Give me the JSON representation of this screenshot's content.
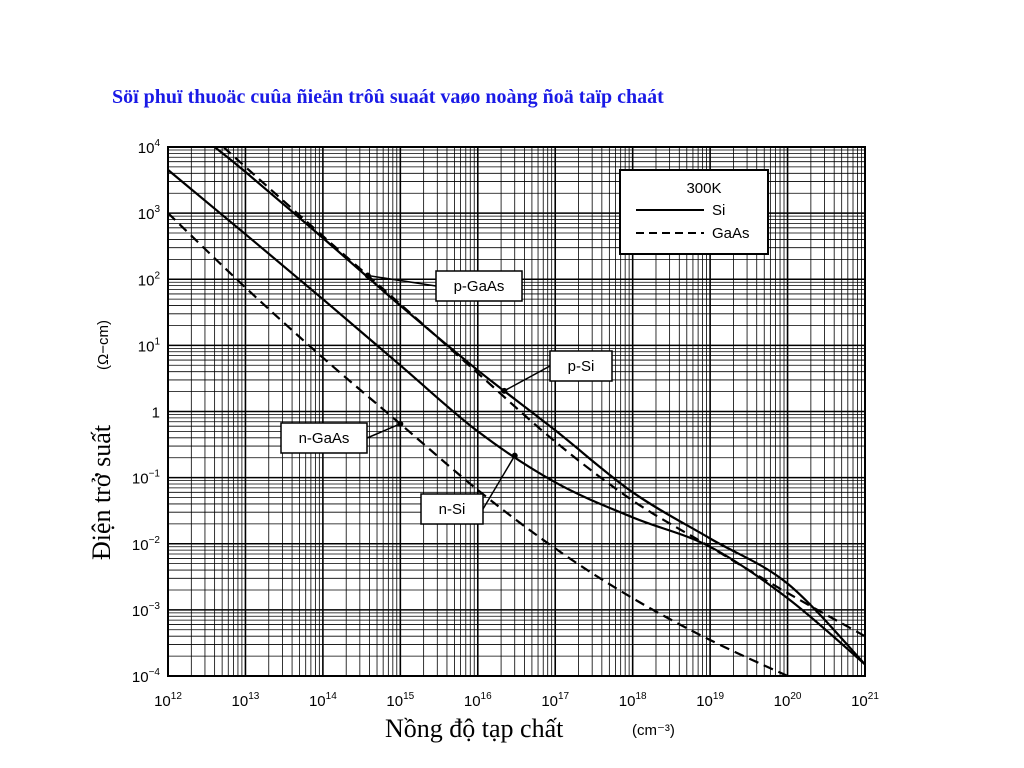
{
  "slide": {
    "title": "Söï phuï thuoäc cuûa ñieän trôû suaát vaøo noàng ñoä taïp chaát"
  },
  "chart_data": {
    "type": "line",
    "xscale": "log",
    "yscale": "log",
    "xlim": [
      1000000000000.0,
      1e+21
    ],
    "ylim": [
      0.0001,
      10000.0
    ],
    "grid": true,
    "xlabel": "Nồng độ tạp chất",
    "xlabel_unit": "(cm⁻³)",
    "ylabel": "Điện trở suất",
    "ylabel_unit": "(Ω−cm)",
    "x_ticks": [
      {
        "base": "10",
        "exp": "12"
      },
      {
        "base": "10",
        "exp": "13"
      },
      {
        "base": "10",
        "exp": "14"
      },
      {
        "base": "10",
        "exp": "15"
      },
      {
        "base": "10",
        "exp": "16"
      },
      {
        "base": "10",
        "exp": "17"
      },
      {
        "base": "10",
        "exp": "18"
      },
      {
        "base": "10",
        "exp": "19"
      },
      {
        "base": "10",
        "exp": "20"
      },
      {
        "base": "10",
        "exp": "21"
      }
    ],
    "y_ticks": [
      {
        "base": "10",
        "exp": "4"
      },
      {
        "base": "10",
        "exp": "3"
      },
      {
        "base": "10",
        "exp": "2"
      },
      {
        "base": "10",
        "exp": "1"
      },
      {
        "base": "1",
        "exp": ""
      },
      {
        "base": "10",
        "exp": "−1"
      },
      {
        "base": "10",
        "exp": "−2"
      },
      {
        "base": "10",
        "exp": "−3"
      },
      {
        "base": "10",
        "exp": "−4"
      }
    ],
    "legend": {
      "placement": "top-right",
      "title": "300K",
      "entries": [
        {
          "label": "Si",
          "style": "solid"
        },
        {
          "label": "GaAs",
          "style": "dashed"
        }
      ]
    },
    "series": [
      {
        "name": "p-GaAs",
        "style": "dashed",
        "x": [
          5200000000000.0,
          10000000000000.0,
          100000000000000.0,
          1000000000000000.0,
          1e+16,
          1e+17,
          1e+18,
          1e+19,
          1e+20,
          1e+21
        ],
        "y": [
          10000,
          5000,
          450,
          42,
          3.8,
          0.35,
          0.045,
          0.009,
          0.0018,
          0.0004
        ]
      },
      {
        "name": "p-Si",
        "style": "solid",
        "x": [
          4000000000000.0,
          10000000000000.0,
          100000000000000.0,
          1000000000000000.0,
          1e+16,
          1e+17,
          1e+18,
          1e+19,
          1e+20,
          1e+21
        ],
        "y": [
          10000,
          4200,
          420,
          40,
          4.2,
          0.52,
          0.06,
          0.012,
          0.0025,
          0.00015
        ]
      },
      {
        "name": "n-Si",
        "style": "solid",
        "x": [
          1000000000000.0,
          10000000000000.0,
          100000000000000.0,
          1000000000000000.0,
          1e+16,
          1e+17,
          1e+18,
          1e+19,
          1e+20,
          1e+21
        ],
        "y": [
          4500,
          480,
          50,
          5,
          0.5,
          0.085,
          0.025,
          0.009,
          0.0015,
          0.00015
        ]
      },
      {
        "name": "n-GaAs",
        "style": "dashed",
        "x": [
          1000000000000.0,
          10000000000000.0,
          100000000000000.0,
          1000000000000000.0,
          1e+16,
          1e+17,
          1e+18,
          1e+19,
          1e+20
        ],
        "y": [
          1000,
          75,
          6.5,
          0.65,
          0.065,
          0.0085,
          0.0015,
          0.00035,
          0.0001
        ]
      }
    ],
    "annotations": [
      {
        "text": "p-GaAs",
        "series": "p-GaAs",
        "anchor_x": 380000000000000.0
      },
      {
        "text": "p-Si",
        "series": "p-Si",
        "anchor_x": 2.2e+16
      },
      {
        "text": "n-GaAs",
        "series": "n-GaAs",
        "anchor_x": 1000000000000000.0
      },
      {
        "text": "n-Si",
        "series": "n-Si",
        "anchor_x": 3e+16
      }
    ]
  }
}
